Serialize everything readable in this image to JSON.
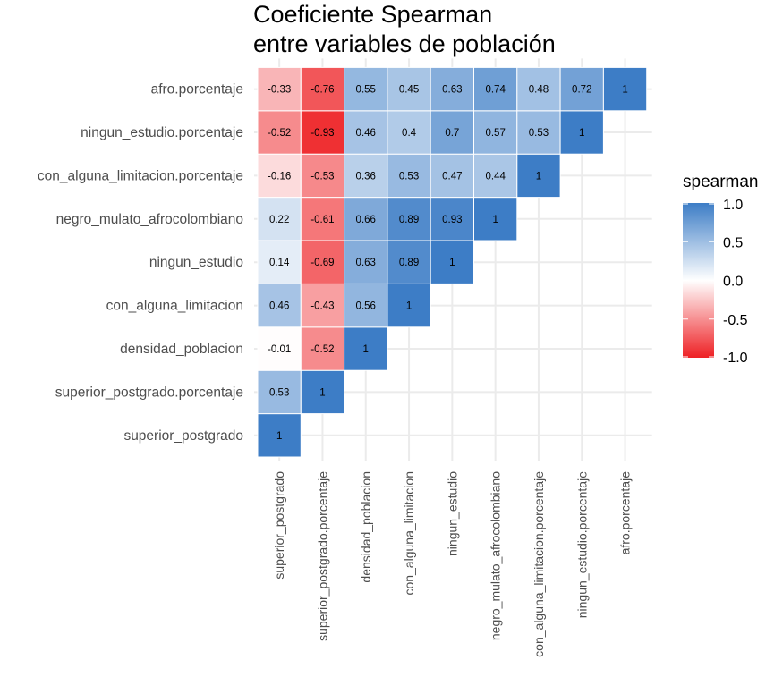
{
  "chart_data": {
    "type": "heatmap",
    "title_lines": [
      "Coeficiente Spearman",
      "entre variables de población"
    ],
    "variables": [
      "superior_postgrado",
      "superior_postgrado.porcentaje",
      "densidad_poblacion",
      "con_alguna_limitacion",
      "ningun_estudio",
      "negro_mulato_afrocolombiano",
      "con_alguna_limitacion.porcentaje",
      "ningun_estudio.porcentaje",
      "afro.porcentaje"
    ],
    "cells": [
      {
        "x": "superior_postgrado",
        "y": "superior_postgrado",
        "value": 1,
        "label": "1"
      },
      {
        "x": "superior_postgrado",
        "y": "superior_postgrado.porcentaje",
        "value": 0.53,
        "label": "0.53"
      },
      {
        "x": "superior_postgrado.porcentaje",
        "y": "superior_postgrado.porcentaje",
        "value": 1,
        "label": "1"
      },
      {
        "x": "superior_postgrado",
        "y": "densidad_poblacion",
        "value": -0.01,
        "label": "-0.01"
      },
      {
        "x": "superior_postgrado.porcentaje",
        "y": "densidad_poblacion",
        "value": -0.52,
        "label": "-0.52"
      },
      {
        "x": "densidad_poblacion",
        "y": "densidad_poblacion",
        "value": 1,
        "label": "1"
      },
      {
        "x": "superior_postgrado",
        "y": "con_alguna_limitacion",
        "value": 0.46,
        "label": "0.46"
      },
      {
        "x": "superior_postgrado.porcentaje",
        "y": "con_alguna_limitacion",
        "value": -0.43,
        "label": "-0.43"
      },
      {
        "x": "densidad_poblacion",
        "y": "con_alguna_limitacion",
        "value": 0.56,
        "label": "0.56"
      },
      {
        "x": "con_alguna_limitacion",
        "y": "con_alguna_limitacion",
        "value": 1,
        "label": "1"
      },
      {
        "x": "superior_postgrado",
        "y": "ningun_estudio",
        "value": 0.14,
        "label": "0.14"
      },
      {
        "x": "superior_postgrado.porcentaje",
        "y": "ningun_estudio",
        "value": -0.69,
        "label": "-0.69"
      },
      {
        "x": "densidad_poblacion",
        "y": "ningun_estudio",
        "value": 0.63,
        "label": "0.63"
      },
      {
        "x": "con_alguna_limitacion",
        "y": "ningun_estudio",
        "value": 0.89,
        "label": "0.89"
      },
      {
        "x": "ningun_estudio",
        "y": "ningun_estudio",
        "value": 1,
        "label": "1"
      },
      {
        "x": "superior_postgrado",
        "y": "negro_mulato_afrocolombiano",
        "value": 0.22,
        "label": "0.22"
      },
      {
        "x": "superior_postgrado.porcentaje",
        "y": "negro_mulato_afrocolombiano",
        "value": -0.61,
        "label": "-0.61"
      },
      {
        "x": "densidad_poblacion",
        "y": "negro_mulato_afrocolombiano",
        "value": 0.66,
        "label": "0.66"
      },
      {
        "x": "con_alguna_limitacion",
        "y": "negro_mulato_afrocolombiano",
        "value": 0.89,
        "label": "0.89"
      },
      {
        "x": "ningun_estudio",
        "y": "negro_mulato_afrocolombiano",
        "value": 0.93,
        "label": "0.93"
      },
      {
        "x": "negro_mulato_afrocolombiano",
        "y": "negro_mulato_afrocolombiano",
        "value": 1,
        "label": "1"
      },
      {
        "x": "superior_postgrado",
        "y": "con_alguna_limitacion.porcentaje",
        "value": -0.16,
        "label": "-0.16"
      },
      {
        "x": "superior_postgrado.porcentaje",
        "y": "con_alguna_limitacion.porcentaje",
        "value": -0.53,
        "label": "-0.53"
      },
      {
        "x": "densidad_poblacion",
        "y": "con_alguna_limitacion.porcentaje",
        "value": 0.36,
        "label": "0.36"
      },
      {
        "x": "con_alguna_limitacion",
        "y": "con_alguna_limitacion.porcentaje",
        "value": 0.53,
        "label": "0.53"
      },
      {
        "x": "ningun_estudio",
        "y": "con_alguna_limitacion.porcentaje",
        "value": 0.47,
        "label": "0.47"
      },
      {
        "x": "negro_mulato_afrocolombiano",
        "y": "con_alguna_limitacion.porcentaje",
        "value": 0.44,
        "label": "0.44"
      },
      {
        "x": "con_alguna_limitacion.porcentaje",
        "y": "con_alguna_limitacion.porcentaje",
        "value": 1,
        "label": "1"
      },
      {
        "x": "superior_postgrado",
        "y": "ningun_estudio.porcentaje",
        "value": -0.52,
        "label": "-0.52"
      },
      {
        "x": "superior_postgrado.porcentaje",
        "y": "ningun_estudio.porcentaje",
        "value": -0.93,
        "label": "-0.93"
      },
      {
        "x": "densidad_poblacion",
        "y": "ningun_estudio.porcentaje",
        "value": 0.46,
        "label": "0.46"
      },
      {
        "x": "con_alguna_limitacion",
        "y": "ningun_estudio.porcentaje",
        "value": 0.4,
        "label": "0.4"
      },
      {
        "x": "ningun_estudio",
        "y": "ningun_estudio.porcentaje",
        "value": 0.7,
        "label": "0.7"
      },
      {
        "x": "negro_mulato_afrocolombiano",
        "y": "ningun_estudio.porcentaje",
        "value": 0.57,
        "label": "0.57"
      },
      {
        "x": "con_alguna_limitacion.porcentaje",
        "y": "ningun_estudio.porcentaje",
        "value": 0.53,
        "label": "0.53"
      },
      {
        "x": "ningun_estudio.porcentaje",
        "y": "ningun_estudio.porcentaje",
        "value": 1,
        "label": "1"
      },
      {
        "x": "superior_postgrado",
        "y": "afro.porcentaje",
        "value": -0.33,
        "label": "-0.33"
      },
      {
        "x": "superior_postgrado.porcentaje",
        "y": "afro.porcentaje",
        "value": -0.76,
        "label": "-0.76"
      },
      {
        "x": "densidad_poblacion",
        "y": "afro.porcentaje",
        "value": 0.55,
        "label": "0.55"
      },
      {
        "x": "con_alguna_limitacion",
        "y": "afro.porcentaje",
        "value": 0.45,
        "label": "0.45"
      },
      {
        "x": "ningun_estudio",
        "y": "afro.porcentaje",
        "value": 0.63,
        "label": "0.63"
      },
      {
        "x": "negro_mulato_afrocolombiano",
        "y": "afro.porcentaje",
        "value": 0.74,
        "label": "0.74"
      },
      {
        "x": "con_alguna_limitacion.porcentaje",
        "y": "afro.porcentaje",
        "value": 0.48,
        "label": "0.48"
      },
      {
        "x": "ningun_estudio.porcentaje",
        "y": "afro.porcentaje",
        "value": 0.72,
        "label": "0.72"
      },
      {
        "x": "afro.porcentaje",
        "y": "afro.porcentaje",
        "value": 1,
        "label": "1"
      }
    ],
    "legend": {
      "title": "spearman",
      "placement": "right",
      "ticks": [
        {
          "value": 1.0,
          "label": "1.0"
        },
        {
          "value": 0.5,
          "label": "0.5"
        },
        {
          "value": 0.0,
          "label": "0.0"
        },
        {
          "value": -0.5,
          "label": "-0.5"
        },
        {
          "value": -1.0,
          "label": "-1.0"
        }
      ],
      "range": [
        -1,
        1
      ]
    },
    "colors": {
      "low": "#ee2024",
      "mid": "#ffffff",
      "high": "#3d7dc6",
      "grid": "#ebebeb"
    },
    "grid": true
  }
}
